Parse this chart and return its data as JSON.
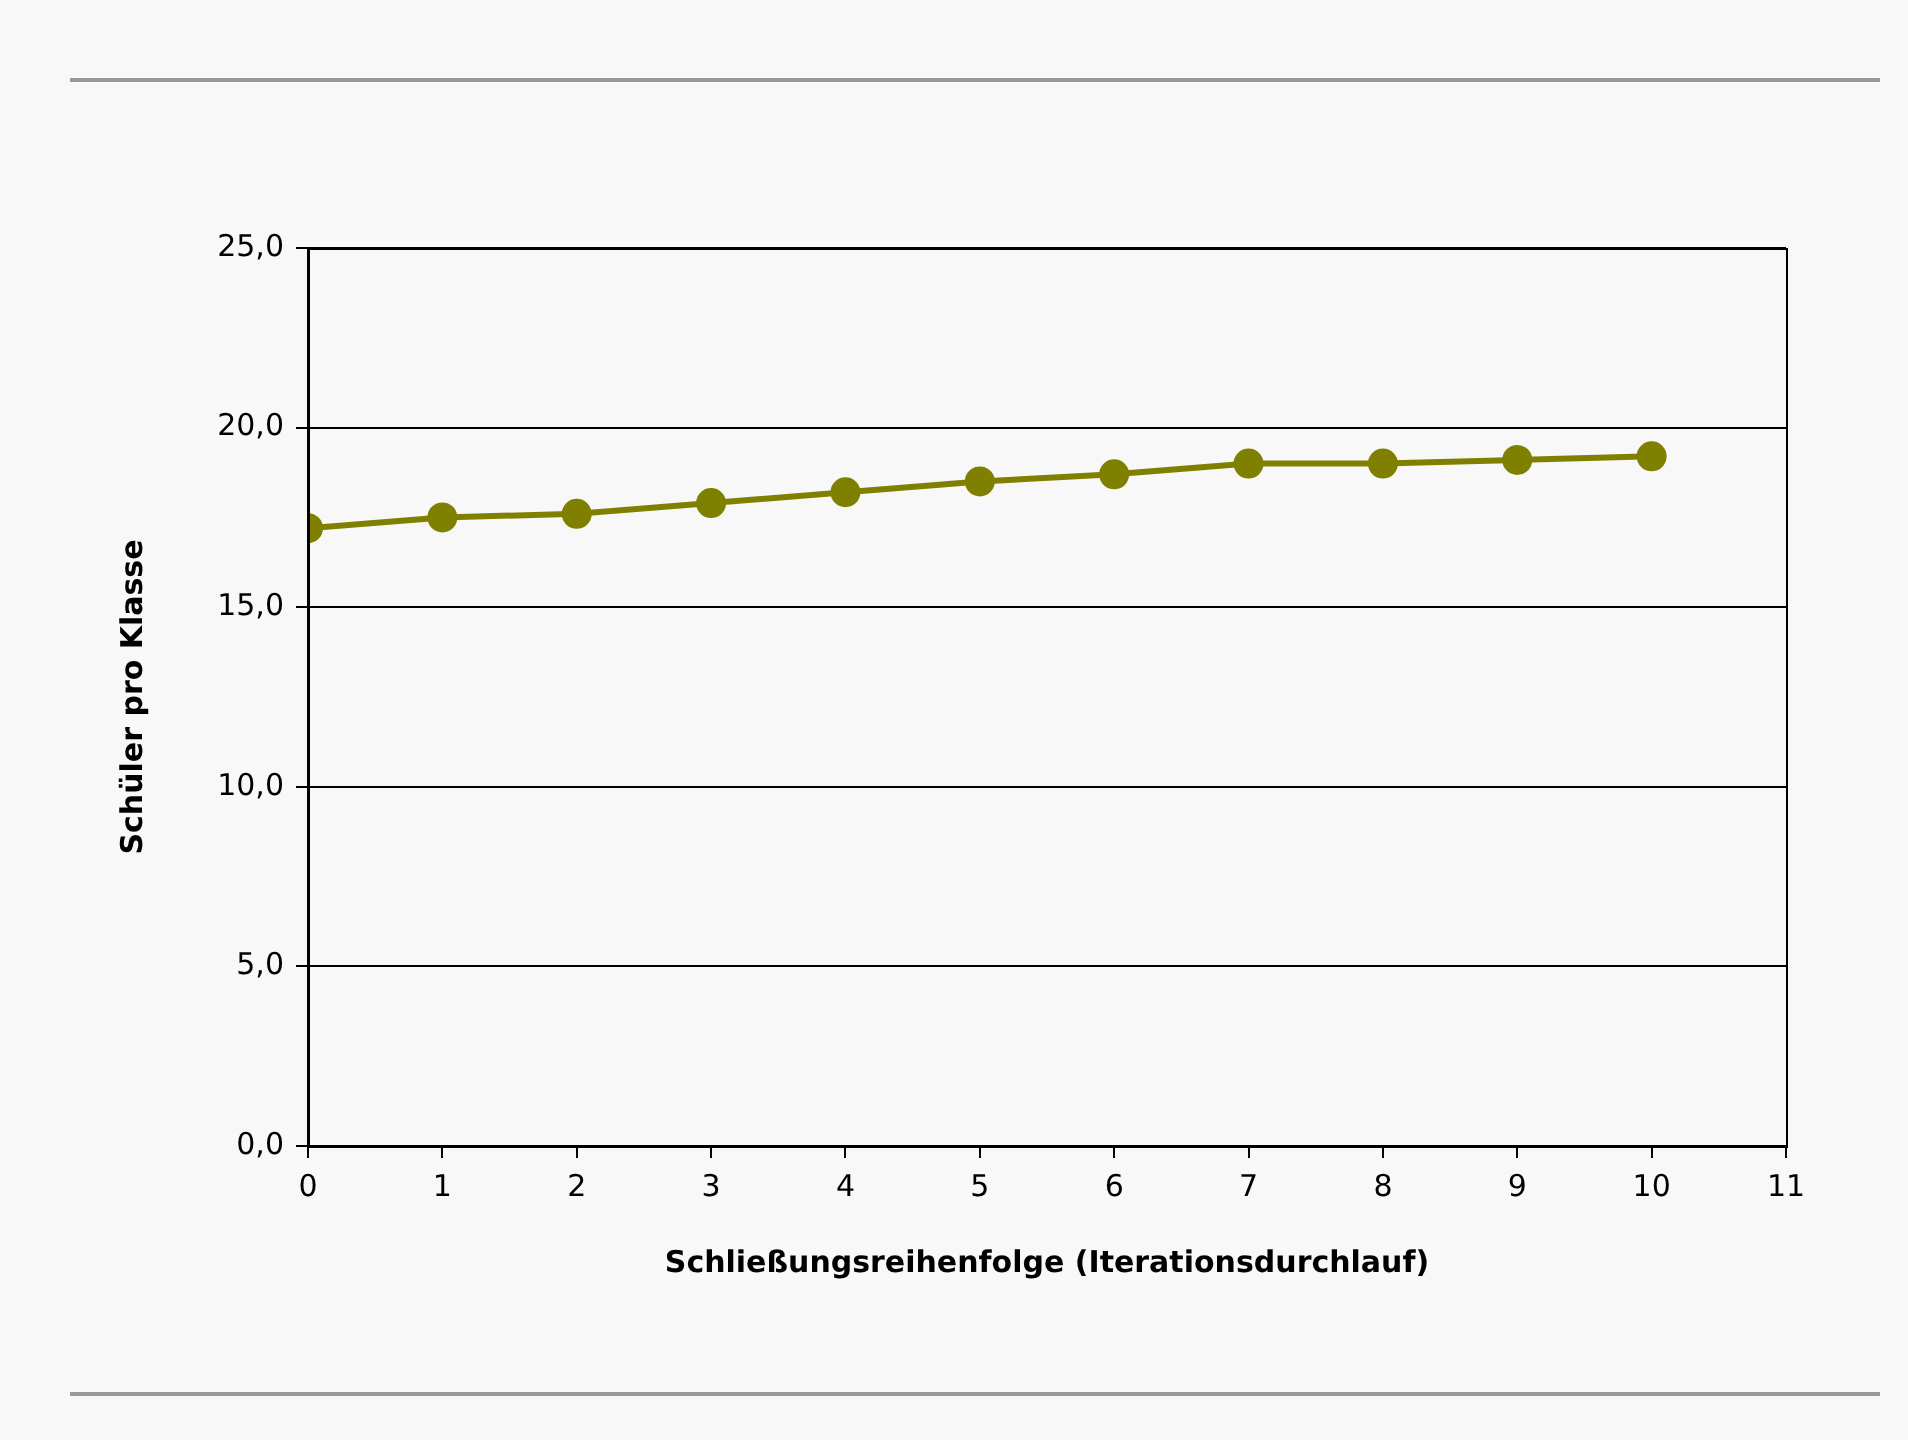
{
  "chart_data": {
    "type": "line",
    "xlabel": "Schließungsreihenfolge (Iterationsdurchlauf)",
    "ylabel": "Schüler pro Klasse",
    "x": [
      0,
      1,
      2,
      3,
      4,
      5,
      6,
      7,
      8,
      9,
      10
    ],
    "series": [
      {
        "color": "#808000",
        "values": [
          17.2,
          17.5,
          17.6,
          17.9,
          18.2,
          18.5,
          18.7,
          19.0,
          19.0,
          19.1,
          19.2
        ]
      }
    ],
    "xlim": [
      0,
      11
    ],
    "xticks": [
      0,
      1,
      2,
      3,
      4,
      5,
      6,
      7,
      8,
      9,
      10,
      11
    ],
    "ylim": [
      0,
      25
    ],
    "yticks": [
      {
        "value": 0,
        "label": "0,0"
      },
      {
        "value": 5,
        "label": "5,0"
      },
      {
        "value": 10,
        "label": "10,0"
      },
      {
        "value": 15,
        "label": "15,0"
      },
      {
        "value": 20,
        "label": "20,0"
      },
      {
        "value": 25,
        "label": "25,0"
      }
    ],
    "grid": "y",
    "legend": false,
    "marker": "circle",
    "line_style": "solid"
  }
}
